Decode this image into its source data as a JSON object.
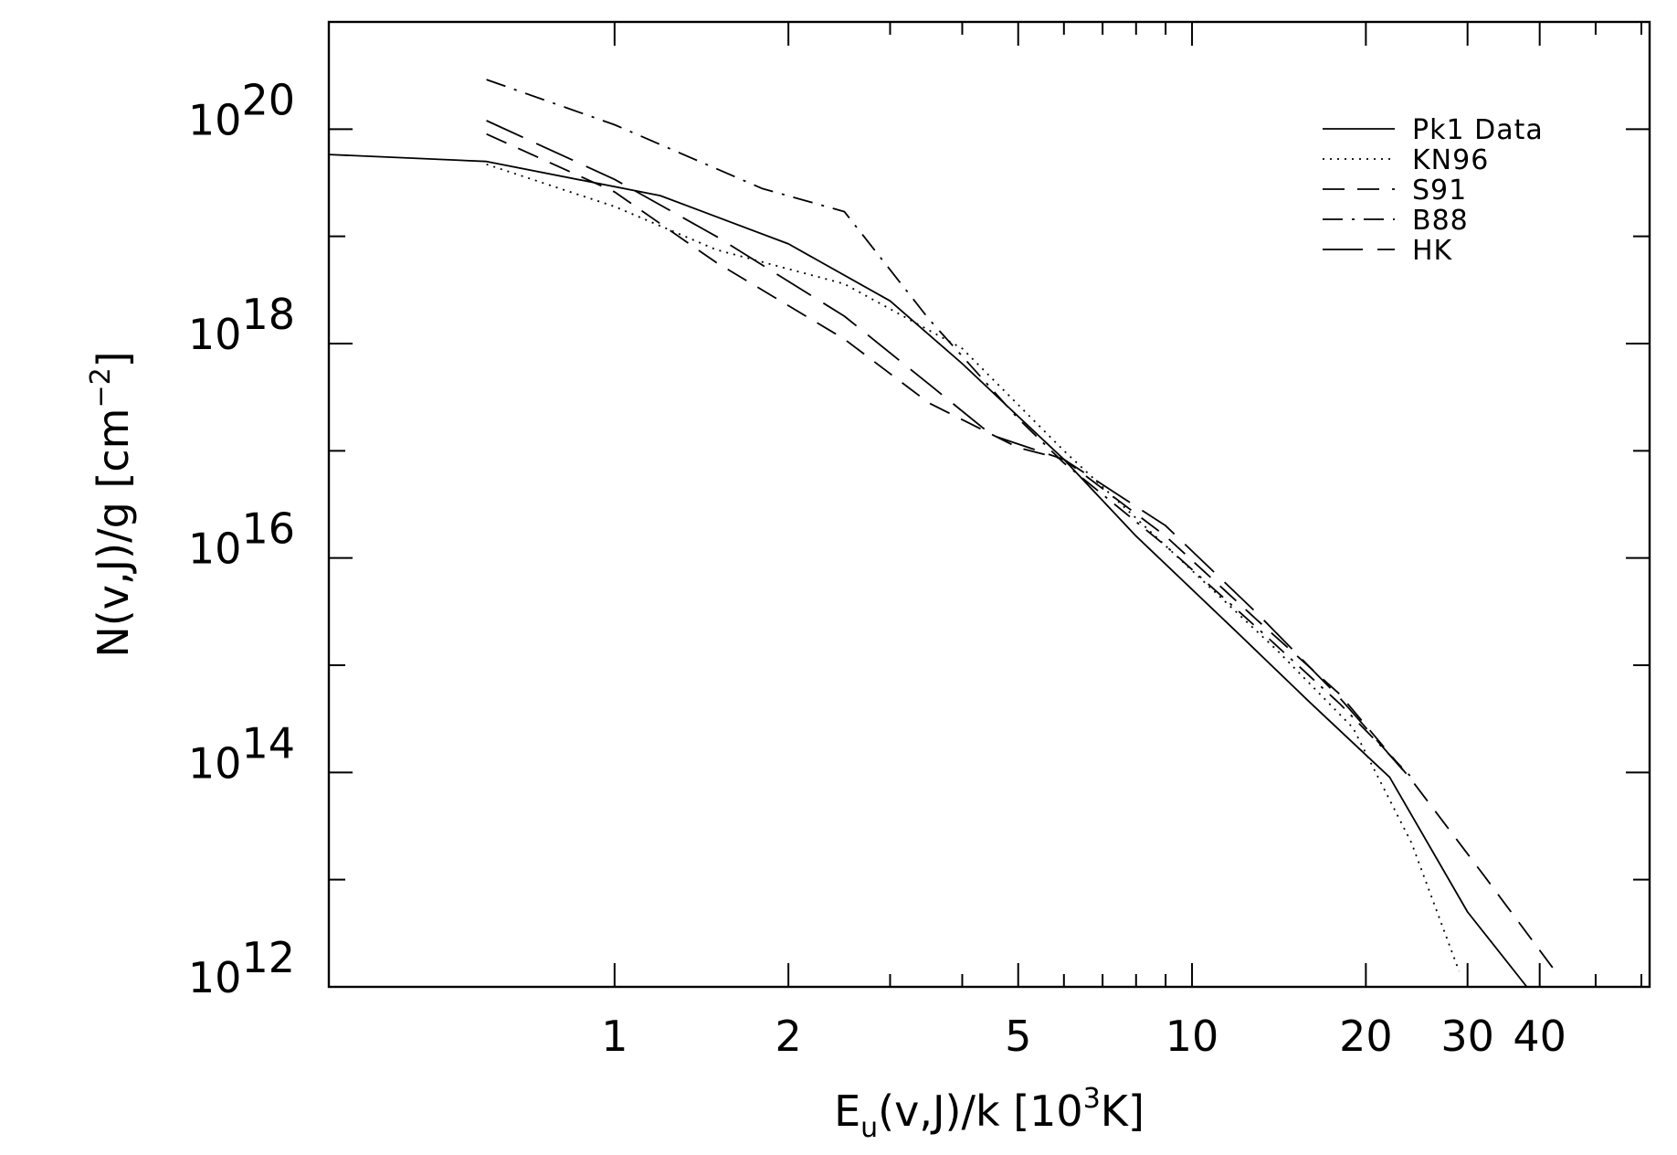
{
  "chart_data": {
    "type": "line",
    "title": "",
    "xlabel": {
      "main": "E",
      "sub": "u",
      "mid": "(v,J)/k   [10",
      "sup": "3",
      "tail": "K]"
    },
    "ylabel": {
      "main": "N(v,J)/g   [cm",
      "sup": "−2",
      "tail": "]"
    },
    "xscale": "log",
    "yscale": "log",
    "xlim": [
      0.32,
      62
    ],
    "ylim": [
      1000000000000.0,
      1e+21
    ],
    "x_ticks": [
      {
        "value": 1,
        "label": "1"
      },
      {
        "value": 2,
        "label": "2"
      },
      {
        "value": 5,
        "label": "5"
      },
      {
        "value": 10,
        "label": "10"
      },
      {
        "value": 20,
        "label": "20"
      },
      {
        "value": 30,
        "label": "30"
      },
      {
        "value": 40,
        "label": "40"
      }
    ],
    "y_ticks": [
      {
        "value": 1000000000000.0,
        "base": "10",
        "exp": "12"
      },
      {
        "value": 100000000000000.0,
        "base": "10",
        "exp": "14"
      },
      {
        "value": 1e+16,
        "base": "10",
        "exp": "16"
      },
      {
        "value": 1e+18,
        "base": "10",
        "exp": "18"
      },
      {
        "value": 1e+20,
        "base": "10",
        "exp": "20"
      }
    ],
    "legend_position": "top-right",
    "grid": false,
    "series": [
      {
        "name": "Pk1 Data",
        "style": "solid",
        "points": [
          [
            0.32,
            5.8e+19
          ],
          [
            0.6,
            5e+19
          ],
          [
            1.2,
            2.4e+19
          ],
          [
            2.0,
            8.5e+18
          ],
          [
            3.0,
            2.5e+18
          ],
          [
            4.0,
            6.5e+17
          ],
          [
            6.0,
            8.3e+16
          ],
          [
            8.0,
            1.6e+16
          ],
          [
            12.0,
            2000000000000000.0
          ],
          [
            16.0,
            450000000000000.0
          ],
          [
            22.0,
            90000000000000.0
          ],
          [
            30.0,
            5000000000000.0
          ],
          [
            38.0,
            1000000000000.0
          ]
        ]
      },
      {
        "name": "KN96",
        "style": "dotted",
        "points": [
          [
            0.6,
            4.7e+19
          ],
          [
            1.0,
            1.9e+19
          ],
          [
            1.5,
            7.5e+18
          ],
          [
            2.5,
            3.6e+18
          ],
          [
            4.0,
            9e+17
          ],
          [
            6.0,
            1e+17
          ],
          [
            9.0,
            1.3e+16
          ],
          [
            14.0,
            1400000000000000.0
          ],
          [
            19.0,
            260000000000000.0
          ],
          [
            24.0,
            22000000000000.0
          ],
          [
            29.0,
            1400000000000.0
          ]
        ]
      },
      {
        "name": "S91",
        "style": "dashed",
        "points": [
          [
            0.6,
            9e+19
          ],
          [
            1.0,
            2.6e+19
          ],
          [
            1.5,
            5.7e+18
          ],
          [
            2.5,
            1.1e+18
          ],
          [
            3.5,
            2.8e+17
          ],
          [
            5.0,
            1.07e+17
          ],
          [
            6.0,
            8.3e+16
          ],
          [
            9.0,
            1.6e+16
          ],
          [
            13.0,
            2600000000000000.0
          ],
          [
            18.0,
            540000000000000.0
          ],
          [
            24.0,
            85000000000000.0
          ],
          [
            32.0,
            11000000000000.0
          ],
          [
            43.0,
            1300000000000.0
          ]
        ]
      },
      {
        "name": "B88",
        "style": "dash-dot",
        "points": [
          [
            0.6,
            2.9e+20
          ],
          [
            1.0,
            1.1e+20
          ],
          [
            1.8,
            2.8e+19
          ],
          [
            2.5,
            1.7e+19
          ],
          [
            3.5,
            1.7e+18
          ],
          [
            5.0,
            2e+17
          ],
          [
            6.0,
            7.7e+16
          ],
          [
            9.0,
            1.3e+16
          ],
          [
            13.0,
            2200000000000000.0
          ],
          [
            18.0,
            440000000000000.0
          ],
          [
            24.0,
            90000000000000.0
          ]
        ]
      },
      {
        "name": "HK",
        "style": "long-dash",
        "points": [
          [
            0.6,
            1.2e+20
          ],
          [
            1.0,
            3.4e+19
          ],
          [
            1.5,
            1e+19
          ],
          [
            2.5,
            1.8e+18
          ],
          [
            3.5,
            4.2e+17
          ],
          [
            4.5,
            1.4e+17
          ],
          [
            6.0,
            8.3e+16
          ],
          [
            9.0,
            2e+16
          ],
          [
            13.0,
            3000000000000000.0
          ],
          [
            18.0,
            500000000000000.0
          ],
          [
            24.0,
            85000000000000.0
          ]
        ]
      }
    ]
  }
}
